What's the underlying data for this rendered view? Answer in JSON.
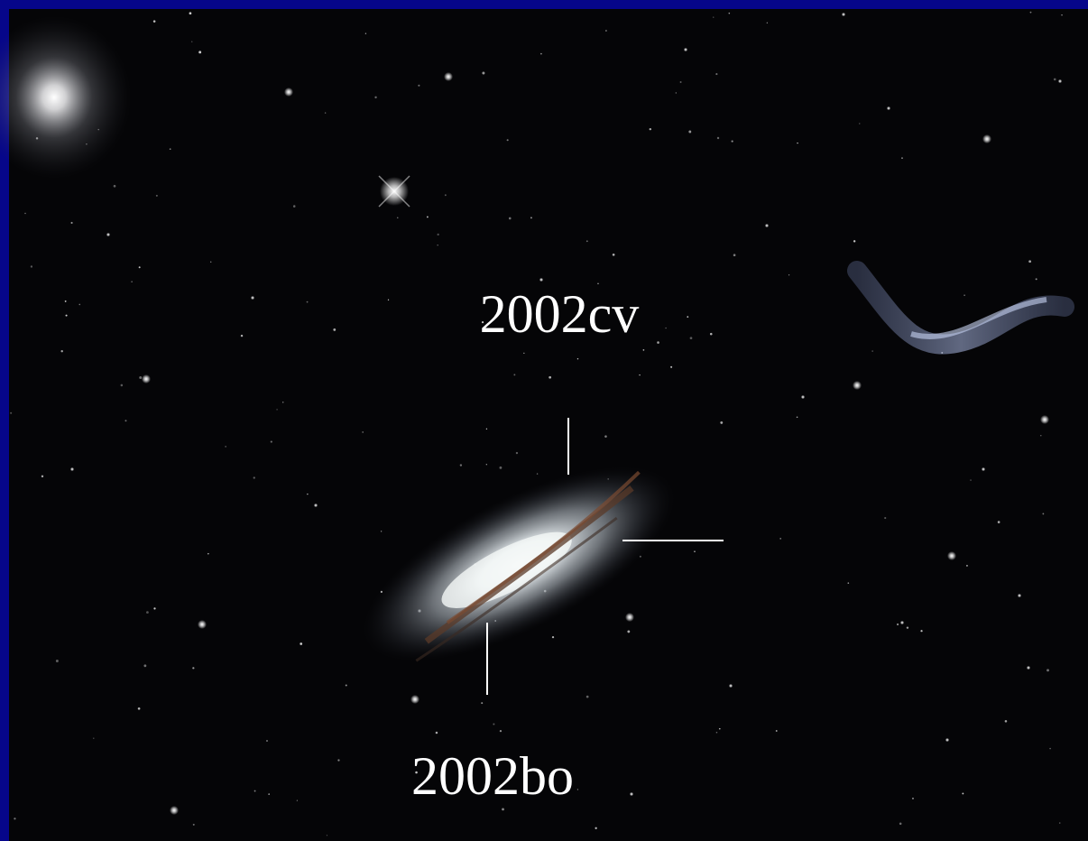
{
  "annotations": [
    {
      "label": "2002cv"
    },
    {
      "label": "2002bo"
    }
  ]
}
